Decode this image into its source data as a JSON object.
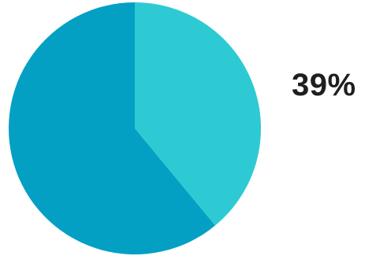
{
  "chart_data": {
    "type": "pie",
    "title": "",
    "slices": [
      {
        "value": 39,
        "color": "#2ecad3"
      },
      {
        "value": 61,
        "color": "#03a0c4"
      }
    ],
    "start_angle_deg": 0,
    "annotation": "39%"
  }
}
